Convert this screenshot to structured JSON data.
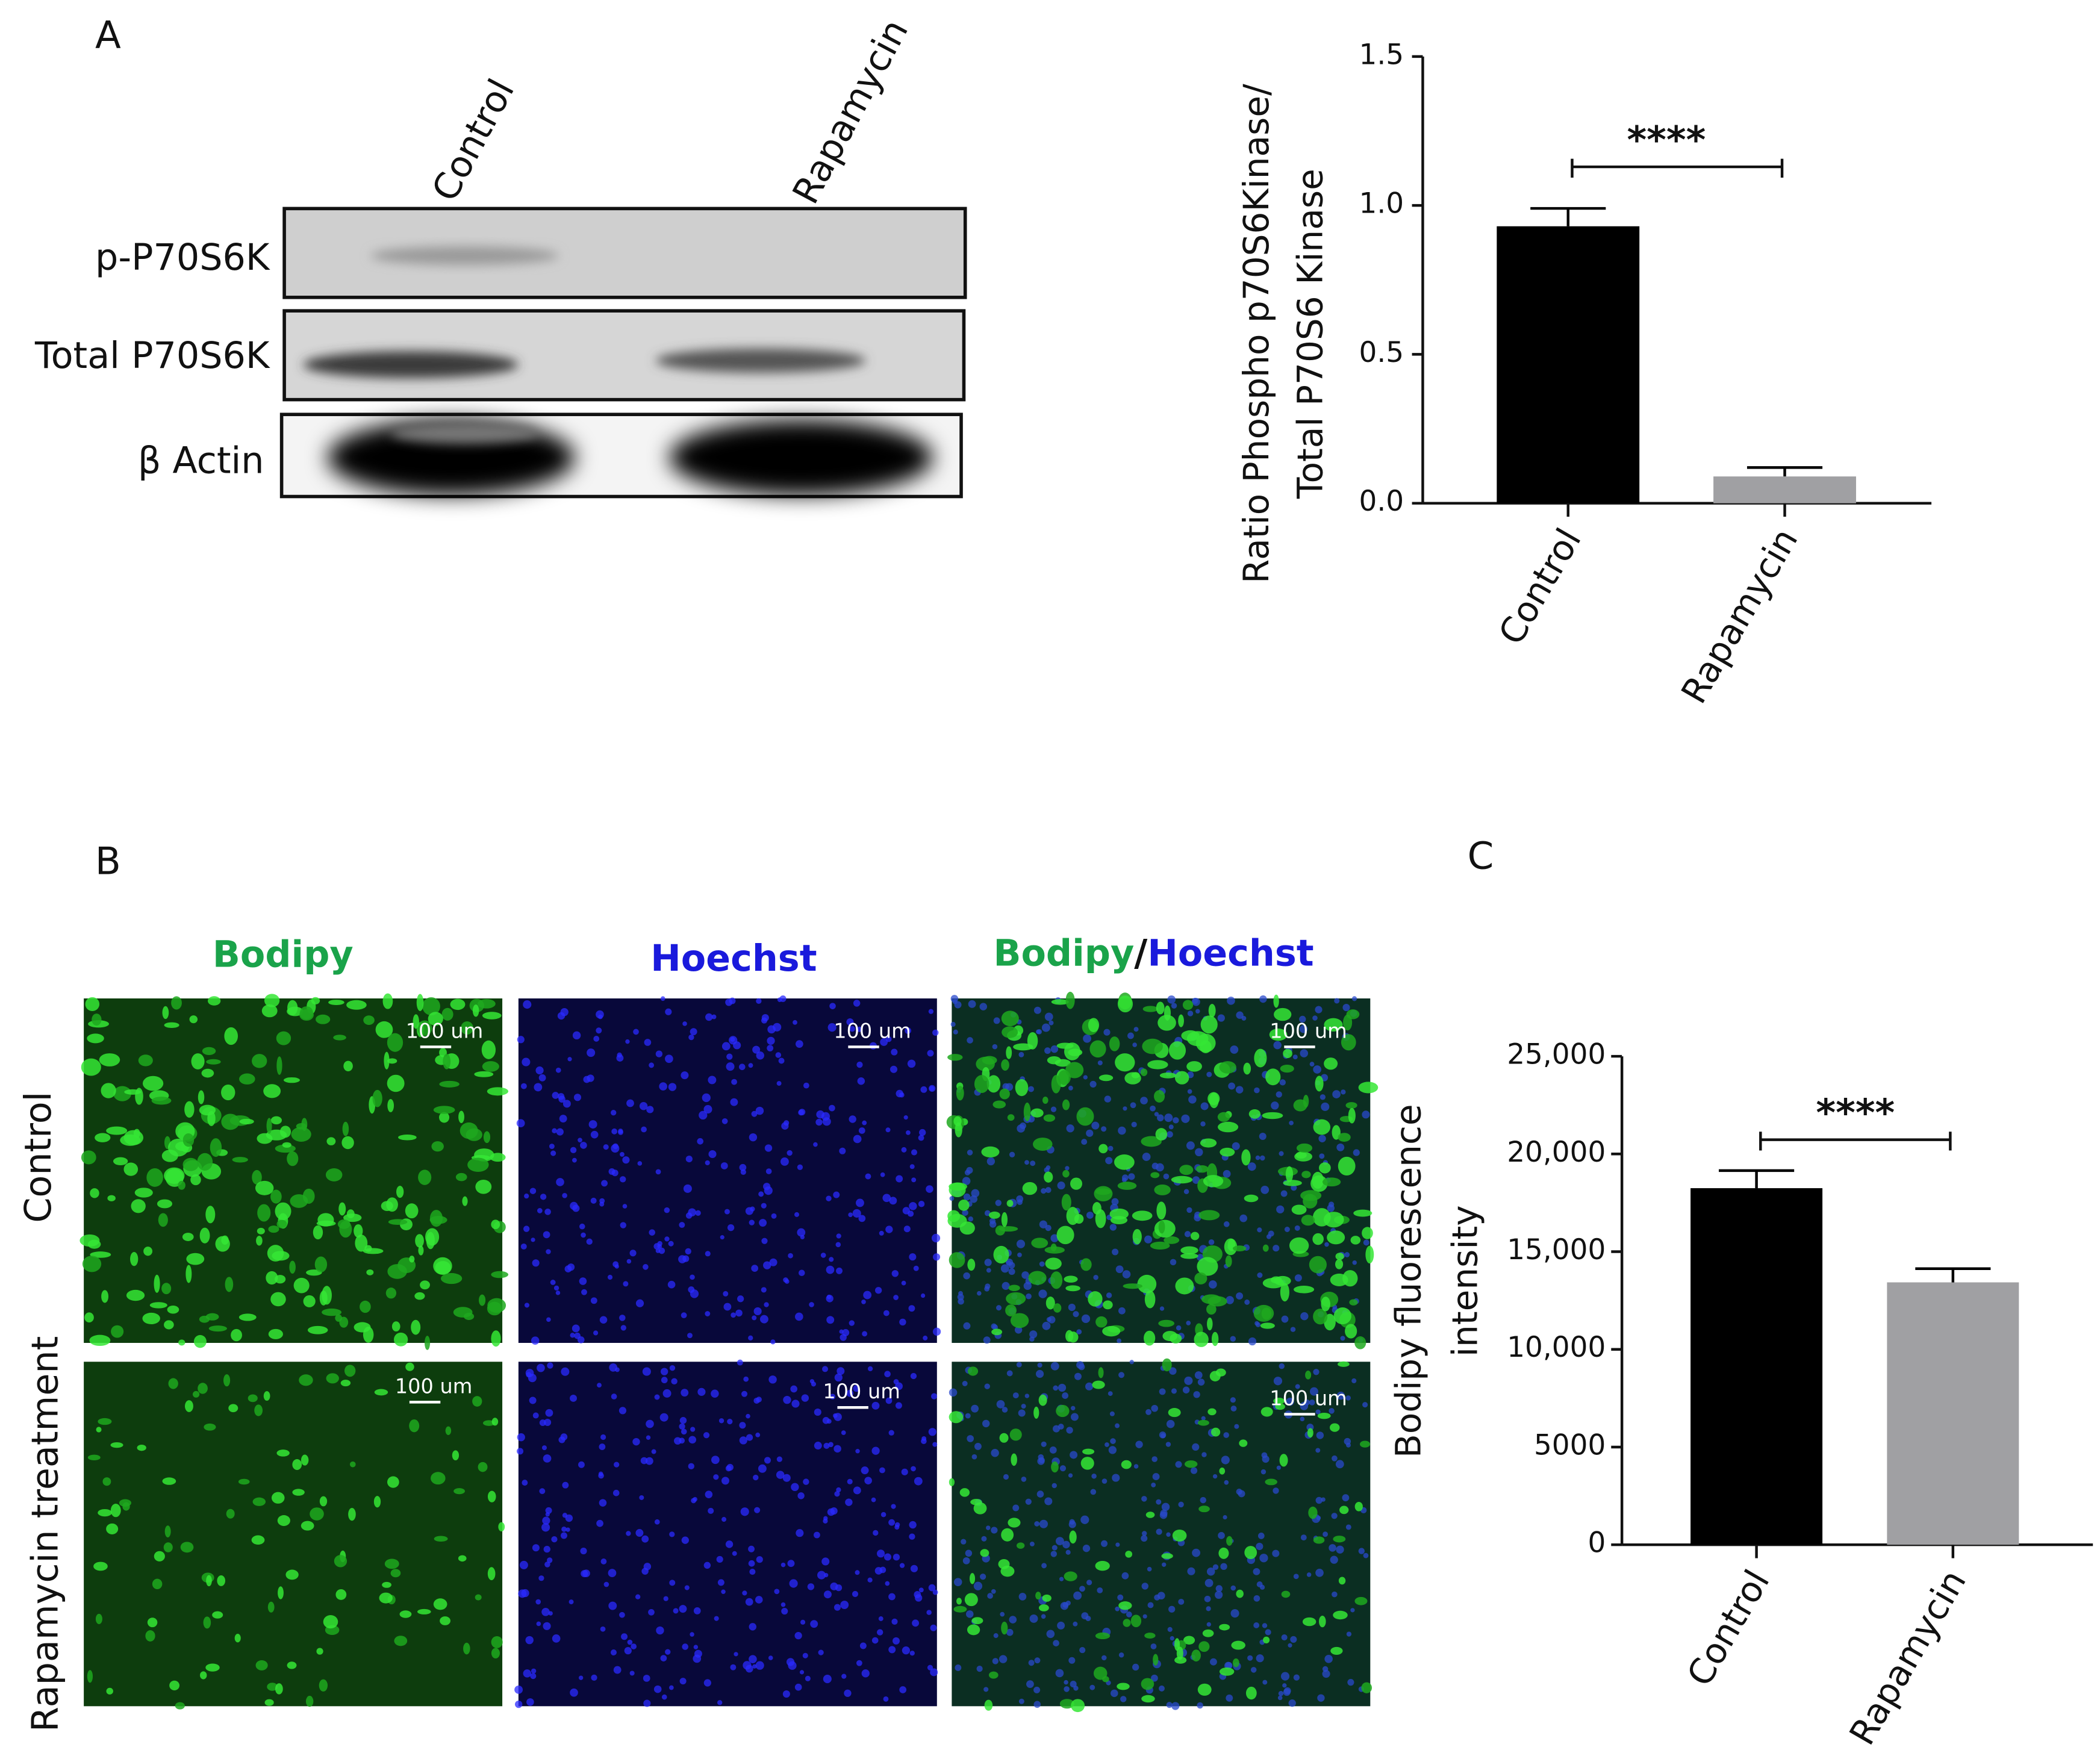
{
  "panels": [
    "A",
    "B",
    "C"
  ],
  "blot": {
    "lanes": [
      "Control",
      "Rapamycin"
    ],
    "rows": [
      "p-P70S6K",
      "Total P70S6K",
      "β Actin"
    ]
  },
  "micrographs": {
    "columns": [
      "Bodipy",
      "Hoechst"
    ],
    "merged_header": [
      "Bodipy",
      "/",
      "Hoechst"
    ],
    "rows": [
      "Control",
      "Rapamycin treatment"
    ],
    "scale_bars": [
      "100 um",
      "100 um",
      "100 um",
      "100 um",
      "100 um",
      "100 um"
    ]
  },
  "chart_data": [
    {
      "type": "bar",
      "ylabel": [
        "Ratio Phospho p70S6Kinase/",
        "Total P70S6 Kinase"
      ],
      "categories": [
        "Control",
        "Rapamycin"
      ],
      "values": [
        0.93,
        0.09
      ],
      "errors": [
        0.06,
        0.03
      ],
      "colors": [
        "#000000",
        "#a0a0a3"
      ],
      "annotation": "****",
      "ylim": [
        0,
        1.5
      ],
      "yticks": [
        {
          "value": 0,
          "label": "0.0"
        },
        0.5,
        {
          "value": 1,
          "label": "1.0"
        },
        1.5
      ]
    },
    {
      "type": "bar",
      "ylabel": [
        "Bodipy fluorescence",
        "intensity"
      ],
      "categories": [
        "Control",
        "Rapamycin"
      ],
      "values": [
        18250,
        13430
      ],
      "errors": [
        900,
        700
      ],
      "colors": [
        "#000000",
        "#a0a0a3"
      ],
      "annotation": "****",
      "ylim": [
        0,
        25000
      ],
      "yticks": [
        0,
        5000,
        {
          "value": 10000,
          "label": "10,000"
        },
        {
          "value": 15000,
          "label": "15,000"
        },
        {
          "value": 20000,
          "label": "20,000"
        },
        {
          "value": 25000,
          "label": "25,000"
        }
      ]
    }
  ]
}
